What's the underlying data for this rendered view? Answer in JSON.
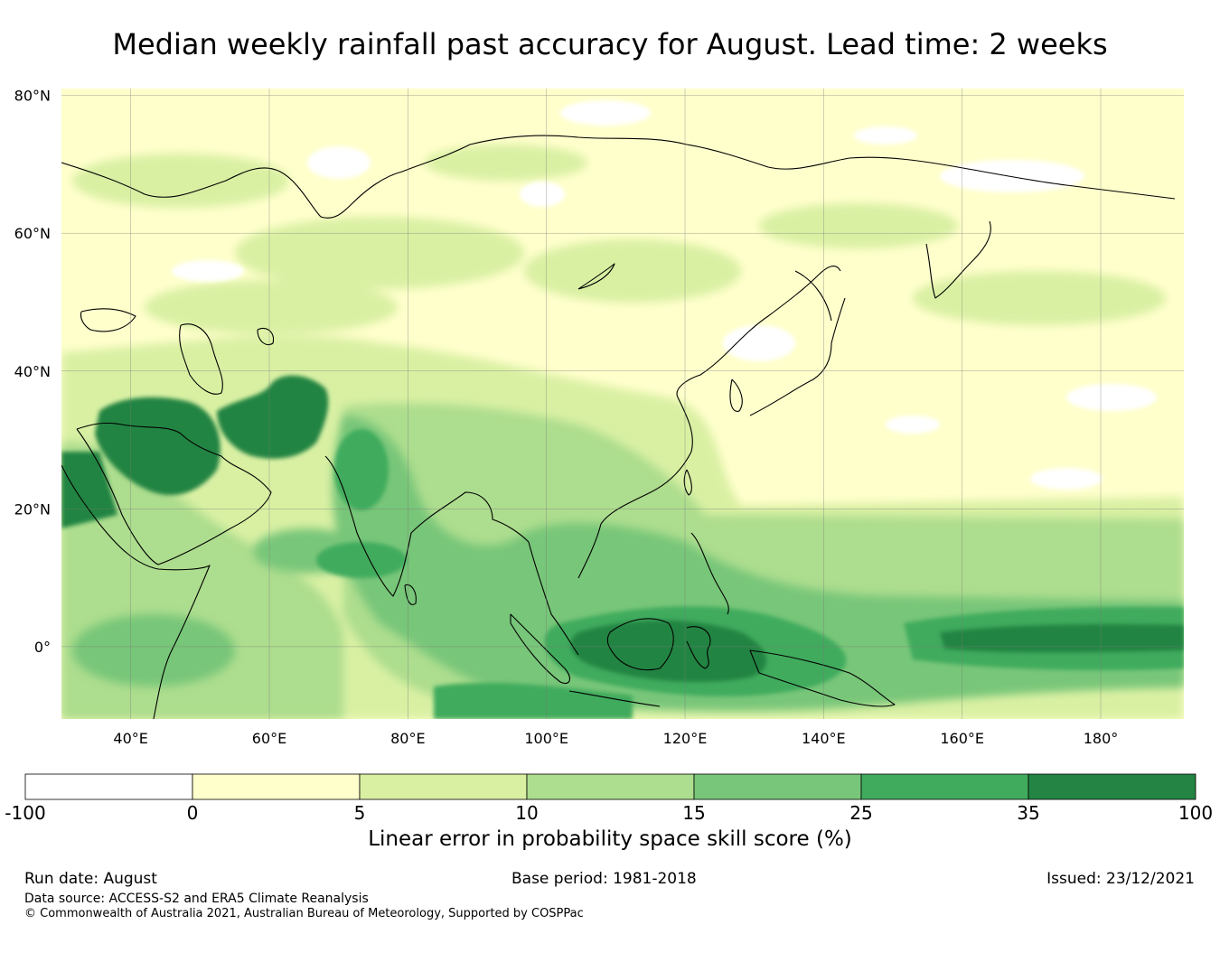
{
  "title": "Median weekly rainfall past accuracy for August. Lead time: 2 weeks",
  "map": {
    "lat_ticks": [
      {
        "value": 80,
        "label": "80°N"
      },
      {
        "value": 60,
        "label": "60°N"
      },
      {
        "value": 40,
        "label": "40°N"
      },
      {
        "value": 20,
        "label": "20°N"
      },
      {
        "value": 0,
        "label": "0°"
      }
    ],
    "lon_ticks": [
      {
        "value": 40,
        "label": "40°E"
      },
      {
        "value": 60,
        "label": "60°E"
      },
      {
        "value": 80,
        "label": "80°E"
      },
      {
        "value": 100,
        "label": "100°E"
      },
      {
        "value": 120,
        "label": "120°E"
      },
      {
        "value": 140,
        "label": "140°E"
      },
      {
        "value": 160,
        "label": "160°E"
      },
      {
        "value": 180,
        "label": "180°"
      }
    ],
    "lon_range": [
      30,
      192
    ],
    "lat_range": [
      -10.5,
      81
    ]
  },
  "colorbar": {
    "title": "Linear error in probability space skill score (%)",
    "levels": [
      "-100",
      "0",
      "5",
      "10",
      "15",
      "25",
      "35",
      "100"
    ],
    "colors": [
      "#ffffff",
      "#ffffcc",
      "#d9f0a3",
      "#addd8e",
      "#78c679",
      "#41ab5d",
      "#238443"
    ]
  },
  "footer": {
    "run_date": "Run date: August",
    "base_period": "Base period: 1981-2018",
    "issued": "Issued: 23/12/2021",
    "data_source": "Data source: ACCESS-S2 and ERA5 Climate Reanalysis",
    "copyright": "© Commonwealth of Australia 2021, Australian Bureau of Meteorology, Supported by COSPPac"
  }
}
